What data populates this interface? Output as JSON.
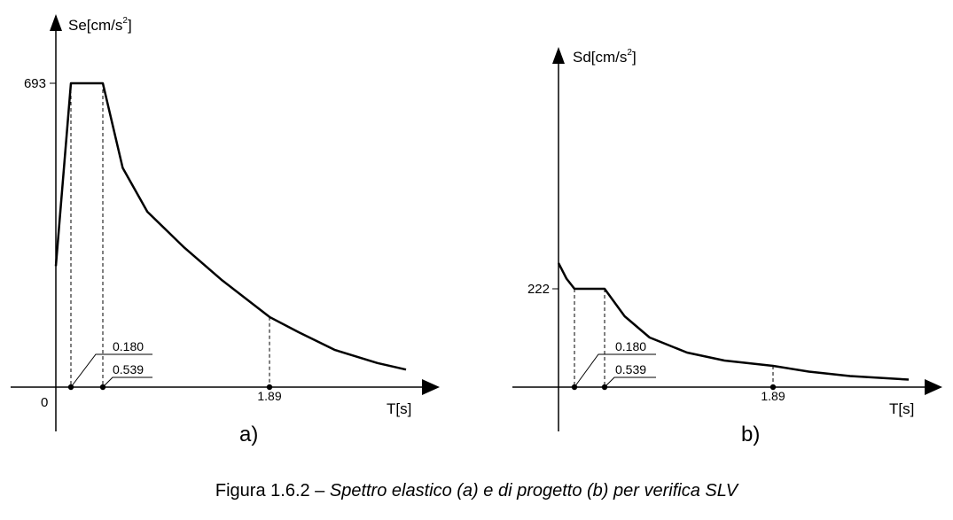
{
  "chart_data": [
    {
      "type": "line",
      "panel_label": "a)",
      "ylabel": "Se[cm/s",
      "ylabel_exp": "2",
      "ylabel_close": "]",
      "xlabel": "T[s]",
      "origin_label": "0",
      "y_tick": {
        "label": "693",
        "value": 693
      },
      "x_marks": [
        {
          "label": "0.180",
          "value": 0.18
        },
        {
          "label": "0.539",
          "value": 0.539
        },
        {
          "label": "1.89",
          "value": 1.89
        }
      ],
      "series": [
        {
          "x": [
            0,
            0.18,
            0.539,
            0.7,
            0.9,
            1.2,
            1.5,
            1.89,
            2.3,
            2.8,
            3.4,
            3.8
          ],
          "y": [
            276,
            693,
            693,
            500,
            400,
            318,
            245,
            160,
            125,
            85,
            55,
            40
          ]
        }
      ]
    },
    {
      "type": "line",
      "panel_label": "b)",
      "ylabel": "Sd[cm/s",
      "ylabel_exp": "2",
      "ylabel_close": "]",
      "xlabel": "T[s]",
      "y_tick": {
        "label": "222",
        "value": 222
      },
      "x_marks": [
        {
          "label": "0.180",
          "value": 0.18
        },
        {
          "label": "0.539",
          "value": 0.539
        },
        {
          "label": "1.89",
          "value": 1.89
        }
      ],
      "series": [
        {
          "x": [
            0,
            0.09,
            0.18,
            0.539,
            0.7,
            0.9,
            1.2,
            1.5,
            1.89,
            2.5,
            3.2,
            4.2
          ],
          "y": [
            280,
            245,
            222,
            222,
            160,
            112,
            78,
            60,
            48,
            35,
            25,
            17
          ]
        }
      ]
    }
  ],
  "caption": {
    "prefix": "Figura 1.6.2 – ",
    "italic": "Spettro elastico (a) e di progetto (b) per verifica SLV"
  }
}
